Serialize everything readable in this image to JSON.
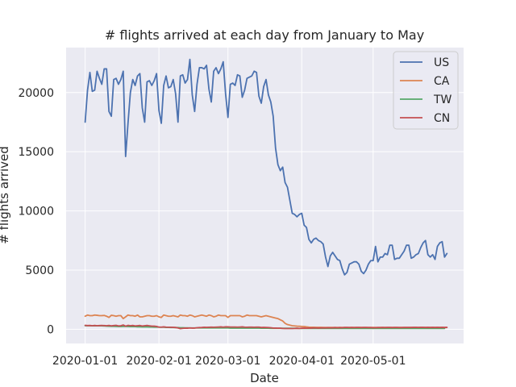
{
  "chart_data": {
    "type": "line",
    "title": "# flights arrived at each day from January to May",
    "xlabel": "Date",
    "ylabel": "# flights arrived",
    "x_start": "2020-01-01",
    "x_end": "2020-05-31",
    "xlim": [
      "2019-12-24",
      "2020-06-08"
    ],
    "ylim": [
      -1200,
      23800
    ],
    "x_ticks": [
      "2020-01-01",
      "2020-02-01",
      "2020-03-01",
      "2020-04-01",
      "2020-05-01"
    ],
    "y_ticks": [
      0,
      5000,
      10000,
      15000,
      20000
    ],
    "y_tick_labels": [
      "0",
      "5000",
      "10000",
      "15000",
      "20000"
    ],
    "grid": true,
    "legend_position": "top-right",
    "colors": {
      "background": "#eaeaf2",
      "grid": "#ffffff"
    },
    "series": [
      {
        "name": "US",
        "color": "#4c72b0",
        "values": [
          17500,
          20200,
          21700,
          20100,
          20200,
          21800,
          21200,
          20700,
          22000,
          22000,
          18400,
          18000,
          21100,
          21200,
          20700,
          21100,
          21800,
          14600,
          17400,
          20000,
          21100,
          20600,
          21400,
          21600,
          18700,
          17500,
          20900,
          21000,
          20600,
          21000,
          21600,
          18500,
          17400,
          20600,
          21400,
          20400,
          20500,
          21100,
          19900,
          17500,
          21400,
          21500,
          20800,
          21100,
          22800,
          19800,
          18400,
          20700,
          22100,
          22100,
          22000,
          22300,
          20300,
          19200,
          21800,
          22100,
          21600,
          22000,
          22600,
          19900,
          17900,
          20700,
          20800,
          20600,
          21500,
          21400,
          19600,
          20200,
          21200,
          21300,
          21400,
          21800,
          21700,
          19700,
          19100,
          20500,
          21100,
          19800,
          19200,
          18000,
          15300,
          13900,
          13400,
          13700,
          12400,
          12000,
          10900,
          9800,
          9700,
          9500,
          9700,
          9800,
          8800,
          8600,
          7600,
          7300,
          7600,
          7700,
          7500,
          7400,
          7200,
          6100,
          5300,
          6200,
          6500,
          6200,
          5900,
          5800,
          5100,
          4600,
          4800,
          5500,
          5600,
          5700,
          5700,
          5500,
          4900,
          4700,
          5000,
          5500,
          5800,
          5800,
          7000,
          5700,
          6100,
          6100,
          6400,
          6300,
          7100,
          7100,
          5900,
          6000,
          6000,
          6300,
          6600,
          7100,
          7100,
          6000,
          6100,
          6300,
          6400,
          6900,
          7300,
          7500,
          6300,
          6100,
          6300,
          5900,
          7000,
          7300,
          7400,
          6100,
          6400
        ]
      },
      {
        "name": "CA",
        "color": "#dd8452",
        "values": [
          1100,
          1200,
          1150,
          1150,
          1200,
          1180,
          1150,
          1150,
          1170,
          1100,
          1000,
          1180,
          1150,
          1100,
          1150,
          1150,
          900,
          1050,
          1200,
          1150,
          1150,
          1100,
          1200,
          1050,
          1050,
          1100,
          1150,
          1150,
          1100,
          1100,
          1150,
          1050,
          1000,
          1200,
          1150,
          1100,
          1100,
          1150,
          1100,
          1050,
          1200,
          1150,
          1150,
          1100,
          1200,
          1150,
          1050,
          1100,
          1150,
          1200,
          1150,
          1100,
          1200,
          1150,
          1050,
          1100,
          1200,
          1150,
          1150,
          1150,
          1000,
          1150,
          1150,
          1150,
          1150,
          1150,
          1050,
          1100,
          1200,
          1150,
          1150,
          1150,
          1150,
          1100,
          1050,
          1100,
          1150,
          1100,
          1050,
          1000,
          950,
          900,
          800,
          700,
          500,
          400,
          350,
          300,
          280,
          260,
          250,
          240,
          230,
          200,
          180,
          170,
          170,
          160,
          160,
          160,
          150,
          150,
          150,
          150,
          150,
          150,
          150,
          150,
          150,
          150,
          150,
          150,
          150,
          150,
          150,
          150,
          150,
          150,
          150,
          150,
          150,
          150,
          150,
          150,
          150,
          150,
          150,
          150,
          150,
          150,
          150,
          150,
          150,
          150,
          150,
          150,
          150,
          150,
          150,
          150,
          150,
          150,
          150,
          150,
          150,
          150,
          150,
          150,
          150,
          150,
          150,
          150,
          150
        ]
      },
      {
        "name": "TW",
        "color": "#55a868",
        "values": [
          300,
          300,
          300,
          290,
          290,
          290,
          290,
          290,
          280,
          270,
          260,
          250,
          250,
          240,
          230,
          230,
          240,
          240,
          230,
          220,
          220,
          220,
          210,
          210,
          200,
          200,
          200,
          190,
          190,
          180,
          180,
          180,
          170,
          170,
          160,
          160,
          150,
          150,
          140,
          140,
          130,
          130,
          120,
          120,
          110,
          110,
          110,
          110,
          110,
          110,
          110,
          110,
          110,
          110,
          110,
          110,
          110,
          110,
          110,
          110,
          110,
          100,
          100,
          100,
          100,
          100,
          100,
          100,
          100,
          100,
          100,
          100,
          100,
          100,
          90,
          90,
          90,
          90,
          80,
          80,
          80,
          80,
          80,
          80,
          80,
          80,
          80,
          80,
          80,
          80,
          70,
          70,
          70,
          70,
          70,
          70,
          70,
          70,
          70,
          70,
          70,
          70,
          70,
          70,
          70,
          70,
          70,
          70,
          70,
          70,
          70,
          70,
          70,
          70,
          70,
          70,
          70,
          70,
          70,
          70,
          70,
          70,
          70,
          70,
          70,
          70,
          70,
          70,
          70,
          70,
          70,
          70,
          70,
          70,
          70,
          70,
          70,
          70,
          70,
          70,
          70,
          70,
          70,
          70,
          70,
          70,
          70,
          70,
          70,
          70,
          70,
          70
        ]
      },
      {
        "name": "CN",
        "color": "#c44e52",
        "values": [
          330,
          310,
          320,
          300,
          320,
          300,
          310,
          320,
          310,
          300,
          320,
          290,
          310,
          330,
          280,
          300,
          360,
          260,
          330,
          300,
          320,
          280,
          300,
          320,
          270,
          300,
          320,
          290,
          260,
          260,
          240,
          180,
          180,
          200,
          180,
          170,
          170,
          160,
          150,
          110,
          50,
          80,
          100,
          90,
          110,
          100,
          100,
          130,
          140,
          150,
          170,
          160,
          170,
          180,
          170,
          180,
          190,
          200,
          180,
          200,
          200,
          190,
          190,
          190,
          180,
          190,
          200,
          180,
          170,
          180,
          180,
          170,
          180,
          180,
          150,
          160,
          150,
          140,
          130,
          100,
          100,
          90,
          90,
          70,
          60,
          60,
          60,
          60,
          70,
          80,
          70,
          90,
          100,
          90,
          100,
          100,
          110,
          110,
          100,
          110,
          120,
          110,
          130,
          120,
          120,
          140,
          120,
          140,
          130,
          150,
          150,
          140,
          150,
          140,
          150,
          150,
          140,
          150,
          150,
          140,
          140,
          130,
          130,
          140,
          140,
          150,
          140,
          150,
          150,
          140,
          150,
          150,
          140,
          140,
          150,
          150,
          150,
          150,
          160,
          160,
          150,
          160,
          160,
          150,
          160,
          150,
          160,
          150,
          160,
          150,
          160,
          150,
          160
        ]
      }
    ]
  }
}
